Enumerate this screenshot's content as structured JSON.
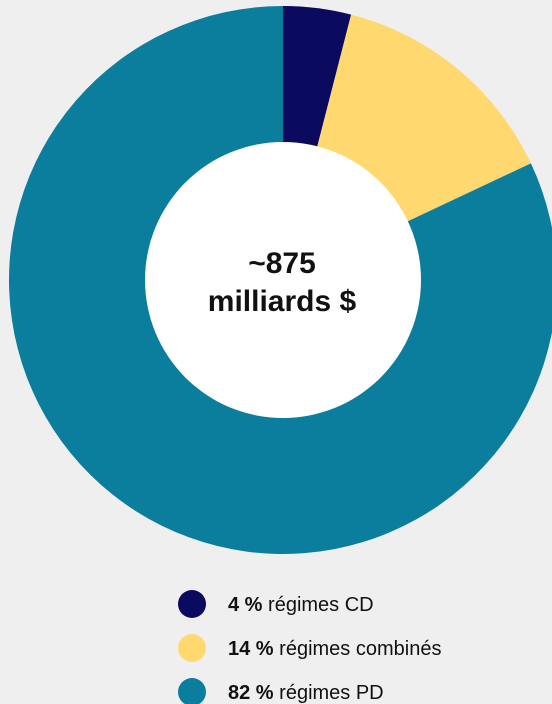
{
  "chart_data": {
    "type": "pie",
    "donut": true,
    "center_text": [
      "~875",
      "milliards $"
    ],
    "slices": [
      {
        "label": "régimes CD",
        "value": 4,
        "value_label": "4 %",
        "color": "#0a0a5e"
      },
      {
        "label": "régimes combinés",
        "value": 14,
        "value_label": "14 %",
        "color": "#ffd970"
      },
      {
        "label": "régimes PD",
        "value": 82,
        "value_label": "82 %",
        "color": "#0b7d9d"
      }
    ],
    "legend_position": "bottom"
  },
  "colors": {
    "background": "#efefef",
    "hole": "#ffffff"
  }
}
